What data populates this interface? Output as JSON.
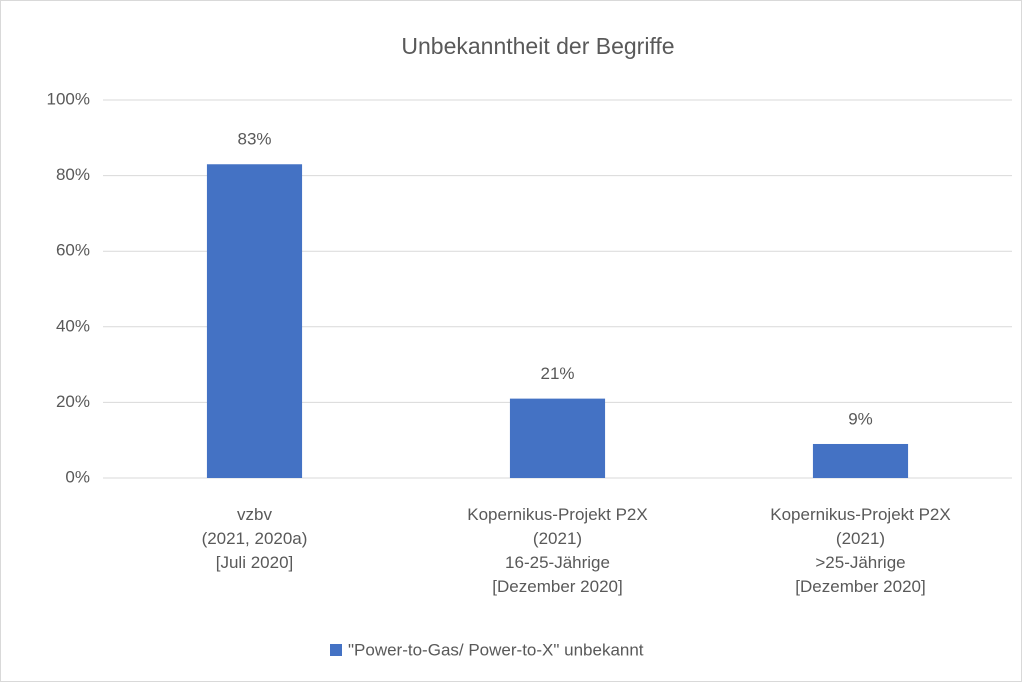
{
  "chart_data": {
    "type": "bar",
    "title": "Unbekanntheit der Begriffe",
    "categories": [
      [
        "vzbv",
        "(2021, 2020a)",
        "[Juli 2020]"
      ],
      [
        "Kopernikus-Projekt P2X",
        "(2021)",
        "16-25-Jährige",
        "[Dezember 2020]"
      ],
      [
        "Kopernikus-Projekt P2X",
        "(2021)",
        ">25-Jährige",
        "[Dezember 2020]"
      ]
    ],
    "series": [
      {
        "name": "\"Power-to-Gas/ Power-to-X\" unbekannt",
        "color": "#4472c4",
        "values": [
          83,
          21,
          9
        ],
        "value_labels": [
          "83%",
          "21%",
          "9%"
        ]
      }
    ],
    "ylim": [
      0,
      100
    ],
    "yticks": [
      {
        "value": 0,
        "label": "0%"
      },
      {
        "value": 20,
        "label": "20%"
      },
      {
        "value": 40,
        "label": "40%"
      },
      {
        "value": 60,
        "label": "60%"
      },
      {
        "value": 80,
        "label": "80%"
      },
      {
        "value": 100,
        "label": "100%"
      }
    ],
    "grid": true,
    "legend": "bottom"
  }
}
